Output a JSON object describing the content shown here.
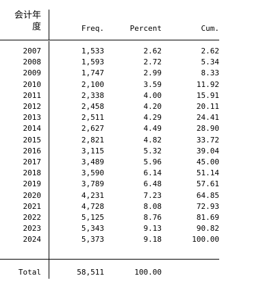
{
  "table": {
    "header": {
      "var_line1": "会计年",
      "var_line2": "度",
      "freq": "Freq.",
      "percent": "Percent",
      "cum": "Cum."
    },
    "rows": [
      {
        "year": "2007",
        "freq": "1,533",
        "percent": "2.62",
        "cum": "2.62"
      },
      {
        "year": "2008",
        "freq": "1,593",
        "percent": "2.72",
        "cum": "5.34"
      },
      {
        "year": "2009",
        "freq": "1,747",
        "percent": "2.99",
        "cum": "8.33"
      },
      {
        "year": "2010",
        "freq": "2,100",
        "percent": "3.59",
        "cum": "11.92"
      },
      {
        "year": "2011",
        "freq": "2,338",
        "percent": "4.00",
        "cum": "15.91"
      },
      {
        "year": "2012",
        "freq": "2,458",
        "percent": "4.20",
        "cum": "20.11"
      },
      {
        "year": "2013",
        "freq": "2,511",
        "percent": "4.29",
        "cum": "24.41"
      },
      {
        "year": "2014",
        "freq": "2,627",
        "percent": "4.49",
        "cum": "28.90"
      },
      {
        "year": "2015",
        "freq": "2,821",
        "percent": "4.82",
        "cum": "33.72"
      },
      {
        "year": "2016",
        "freq": "3,115",
        "percent": "5.32",
        "cum": "39.04"
      },
      {
        "year": "2017",
        "freq": "3,489",
        "percent": "5.96",
        "cum": "45.00"
      },
      {
        "year": "2018",
        "freq": "3,590",
        "percent": "6.14",
        "cum": "51.14"
      },
      {
        "year": "2019",
        "freq": "3,789",
        "percent": "6.48",
        "cum": "57.61"
      },
      {
        "year": "2020",
        "freq": "4,231",
        "percent": "7.23",
        "cum": "64.85"
      },
      {
        "year": "2021",
        "freq": "4,728",
        "percent": "8.08",
        "cum": "72.93"
      },
      {
        "year": "2022",
        "freq": "5,125",
        "percent": "8.76",
        "cum": "81.69"
      },
      {
        "year": "2023",
        "freq": "5,343",
        "percent": "9.13",
        "cum": "90.82"
      },
      {
        "year": "2024",
        "freq": "5,373",
        "percent": "9.18",
        "cum": "100.00"
      }
    ],
    "total": {
      "label": "Total",
      "freq": "58,511",
      "percent": "100.00"
    }
  }
}
